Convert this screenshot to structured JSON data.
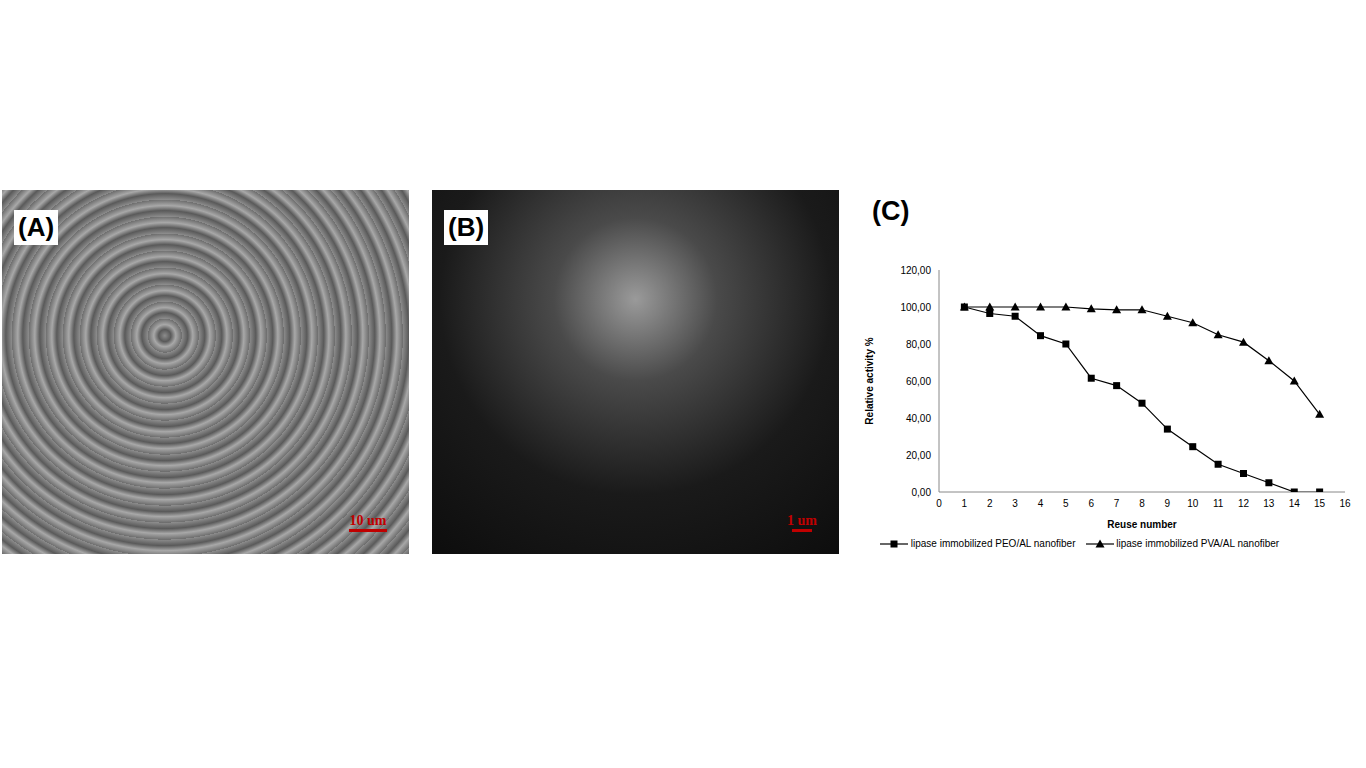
{
  "panels": [
    {
      "label": "(A)",
      "scale_bar": "10 um"
    },
    {
      "label": "(B)",
      "scale_bar": "1 um"
    }
  ],
  "chart_data": {
    "type": "line",
    "panel_label": "(C)",
    "x_label": "Reuse number",
    "y_label": "Relative activity %",
    "xlim": [
      0,
      16
    ],
    "xticks": [
      0,
      1,
      2,
      3,
      4,
      5,
      6,
      7,
      8,
      9,
      10,
      11,
      12,
      13,
      14,
      15,
      16
    ],
    "ylim": [
      0,
      120
    ],
    "yticks": [
      {
        "value": 0,
        "label": "0,00"
      },
      {
        "value": 20,
        "label": "20,00"
      },
      {
        "value": 40,
        "label": "40,00"
      },
      {
        "value": 60,
        "label": "60,00"
      },
      {
        "value": 80,
        "label": "80,00"
      },
      {
        "value": 100,
        "label": "100,00"
      },
      {
        "value": 120,
        "label": "120,00"
      }
    ],
    "grid": false,
    "legend": "bottom",
    "x": [
      1,
      2,
      3,
      4,
      5,
      6,
      7,
      8,
      9,
      10,
      11,
      12,
      13,
      14,
      15
    ],
    "series": [
      {
        "name": "lipase immobilized PEO/AL nanofiber",
        "color": "#000000",
        "marker": "square",
        "values": [
          100,
          96.5,
          95,
          84.5,
          80,
          61.5,
          57.5,
          48,
          34,
          24.5,
          15,
          10,
          5,
          0,
          0
        ]
      },
      {
        "name": "lipase immobilized PVA/AL nanofiber",
        "color": "#000000",
        "marker": "triangle",
        "values": [
          100,
          100,
          100,
          100,
          100,
          99,
          98.5,
          98.5,
          95,
          91.5,
          85,
          81,
          71,
          60,
          42
        ]
      }
    ]
  }
}
